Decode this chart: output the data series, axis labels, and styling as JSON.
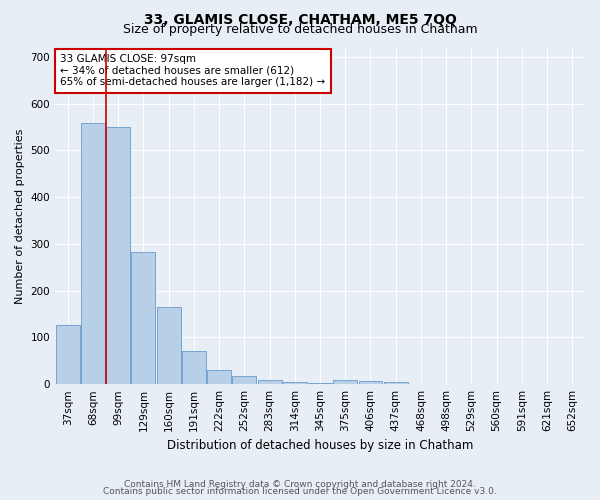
{
  "title": "33, GLAMIS CLOSE, CHATHAM, ME5 7QQ",
  "subtitle": "Size of property relative to detached houses in Chatham",
  "xlabel": "Distribution of detached houses by size in Chatham",
  "ylabel": "Number of detached properties",
  "categories": [
    "37sqm",
    "68sqm",
    "99sqm",
    "129sqm",
    "160sqm",
    "191sqm",
    "222sqm",
    "252sqm",
    "283sqm",
    "314sqm",
    "345sqm",
    "375sqm",
    "406sqm",
    "437sqm",
    "468sqm",
    "498sqm",
    "529sqm",
    "560sqm",
    "591sqm",
    "621sqm",
    "652sqm"
  ],
  "values": [
    127,
    558,
    551,
    283,
    164,
    70,
    31,
    18,
    9,
    5,
    2,
    10,
    7,
    5,
    0,
    0,
    0,
    0,
    0,
    0,
    0
  ],
  "bar_color": "#b8cfe8",
  "bar_edge_color": "#6699cc",
  "property_line_color": "#cc0000",
  "annotation_text": "33 GLAMIS CLOSE: 97sqm\n← 34% of detached houses are smaller (612)\n65% of semi-detached houses are larger (1,182) →",
  "annotation_box_color": "#ffffff",
  "annotation_box_edge_color": "#cc0000",
  "ylim": [
    0,
    720
  ],
  "yticks": [
    0,
    100,
    200,
    300,
    400,
    500,
    600,
    700
  ],
  "background_color": "#e8eef5",
  "grid_color": "#ffffff",
  "footer_line1": "Contains HM Land Registry data © Crown copyright and database right 2024.",
  "footer_line2": "Contains public sector information licensed under the Open Government Licence v3.0.",
  "title_fontsize": 10,
  "subtitle_fontsize": 9,
  "xlabel_fontsize": 8.5,
  "ylabel_fontsize": 8,
  "tick_fontsize": 7.5,
  "annotation_fontsize": 7.5,
  "footer_fontsize": 6.5
}
